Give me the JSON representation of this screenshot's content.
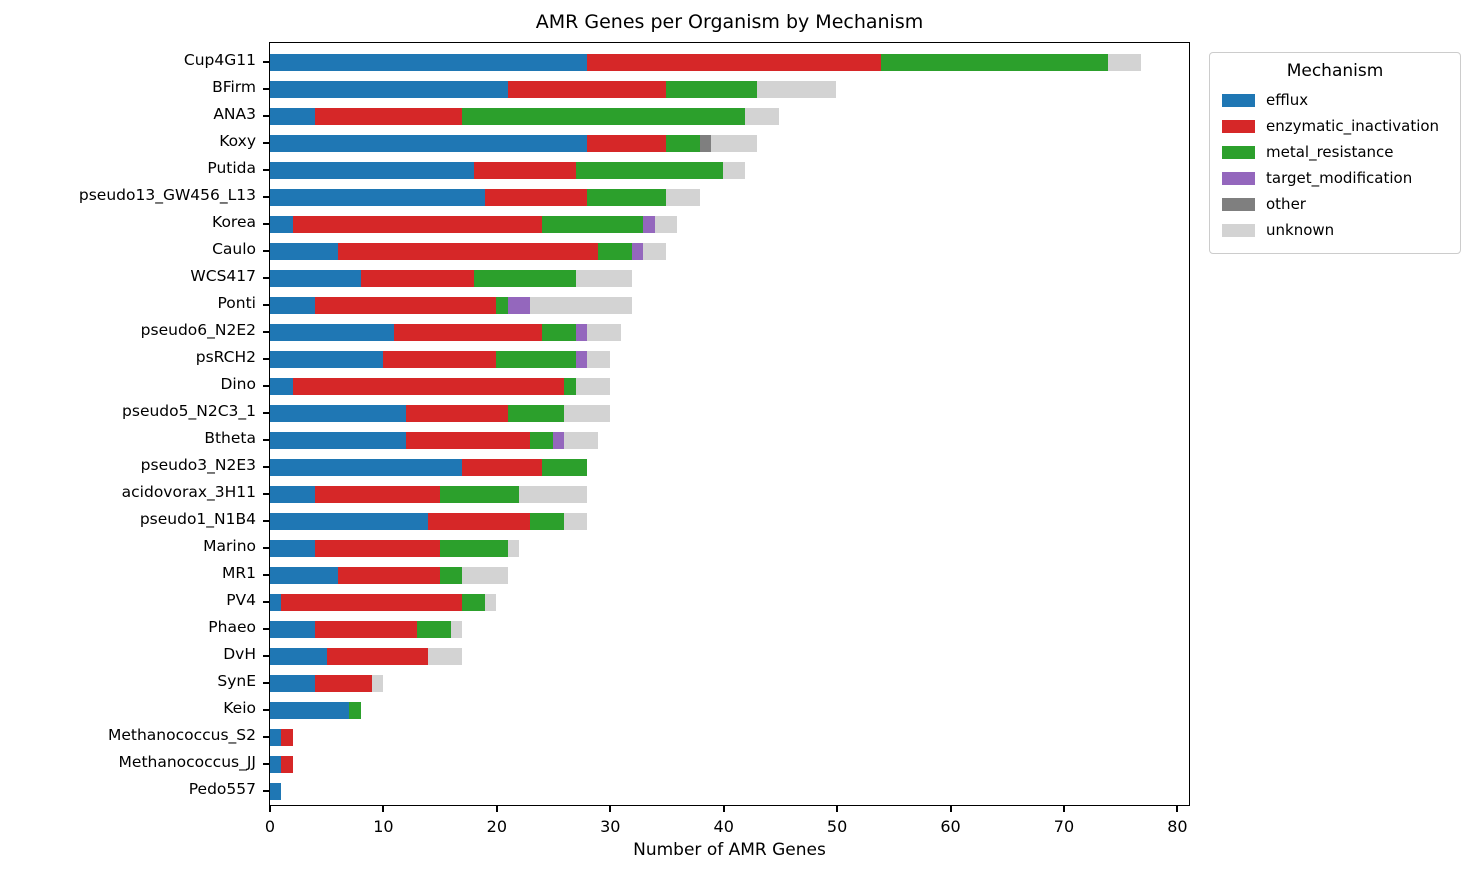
{
  "title": "AMR Genes per Organism by Mechanism",
  "xlabel": "Number of AMR Genes",
  "legend": {
    "title": "Mechanism"
  },
  "chart_data": {
    "type": "bar",
    "orientation": "horizontal",
    "stacked": true,
    "title": "AMR Genes per Organism by Mechanism",
    "xlabel": "Number of AMR Genes",
    "ylabel": "",
    "grid": false,
    "xlim": [
      0,
      81.2
    ],
    "xticks": [
      0,
      10,
      20,
      30,
      40,
      50,
      60,
      70,
      80
    ],
    "legend_title": "Mechanism",
    "legend_position": "outside-upper-right",
    "categories": [
      "Cup4G11",
      "BFirm",
      "ANA3",
      "Koxy",
      "Putida",
      "pseudo13_GW456_L13",
      "Korea",
      "Caulo",
      "WCS417",
      "Ponti",
      "pseudo6_N2E2",
      "psRCH2",
      "Dino",
      "pseudo5_N2C3_1",
      "Btheta",
      "pseudo3_N2E3",
      "acidovorax_3H11",
      "pseudo1_N1B4",
      "Marino",
      "MR1",
      "PV4",
      "Phaeo",
      "DvH",
      "SynE",
      "Keio",
      "Methanococcus_S2",
      "Methanococcus_JJ",
      "Pedo557"
    ],
    "series": [
      {
        "name": "efflux",
        "color": "#1f77b4",
        "values": [
          28,
          21,
          4,
          28,
          18,
          19,
          2,
          6,
          8,
          4,
          11,
          10,
          2,
          12,
          12,
          17,
          4,
          14,
          4,
          6,
          1,
          4,
          5,
          4,
          7,
          1,
          1,
          1
        ]
      },
      {
        "name": "enzymatic_inactivation",
        "color": "#d62728",
        "values": [
          26,
          14,
          13,
          7,
          9,
          9,
          22,
          23,
          10,
          16,
          13,
          10,
          24,
          9,
          11,
          7,
          11,
          9,
          11,
          9,
          16,
          9,
          9,
          5,
          0,
          1,
          1,
          0
        ]
      },
      {
        "name": "metal_resistance",
        "color": "#2ca02c",
        "values": [
          20,
          8,
          25,
          3,
          13,
          7,
          9,
          3,
          9,
          1,
          3,
          7,
          1,
          5,
          2,
          4,
          7,
          3,
          6,
          2,
          2,
          3,
          0,
          0,
          1,
          0,
          0,
          0
        ]
      },
      {
        "name": "target_modification",
        "color": "#9467bd",
        "values": [
          0,
          0,
          0,
          0,
          0,
          0,
          1,
          1,
          0,
          2,
          1,
          1,
          0,
          0,
          1,
          0,
          0,
          0,
          0,
          0,
          0,
          0,
          0,
          0,
          0,
          0,
          0,
          0
        ]
      },
      {
        "name": "other",
        "color": "#7f7f7f",
        "values": [
          0,
          0,
          0,
          1,
          0,
          0,
          0,
          0,
          0,
          0,
          0,
          0,
          0,
          0,
          0,
          0,
          0,
          0,
          0,
          0,
          0,
          0,
          0,
          0,
          0,
          0,
          0,
          0
        ]
      },
      {
        "name": "unknown",
        "color": "#d3d3d3",
        "values": [
          3,
          7,
          3,
          4,
          2,
          3,
          2,
          2,
          5,
          9,
          3,
          2,
          3,
          4,
          3,
          0,
          6,
          2,
          1,
          4,
          1,
          1,
          3,
          1,
          0,
          0,
          0,
          0
        ]
      }
    ],
    "totals": [
      77,
      50,
      45,
      43,
      42,
      38,
      36,
      35,
      32,
      32,
      31,
      30,
      30,
      30,
      29,
      28,
      28,
      28,
      22,
      21,
      20,
      17,
      17,
      10,
      8,
      2,
      2,
      1
    ]
  }
}
